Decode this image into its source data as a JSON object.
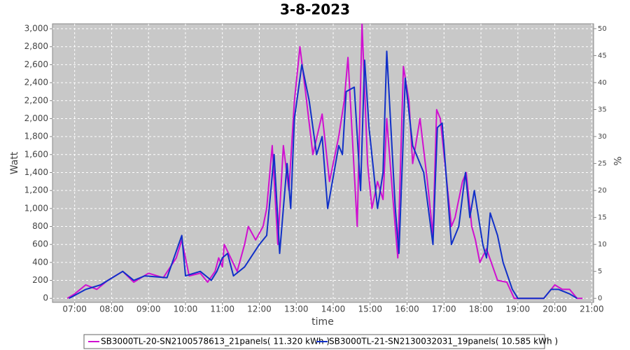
{
  "chart_data": {
    "type": "line",
    "title": "3-8-2023",
    "xlabel": "time",
    "ylabel": "Watt",
    "y2label": "%",
    "xlim": [
      6.4,
      21.05
    ],
    "xticks": [
      {
        "value": 7,
        "label": "07:00"
      },
      {
        "value": 8,
        "label": "08:00"
      },
      {
        "value": 9,
        "label": "09:00"
      },
      {
        "value": 10,
        "label": "10:00"
      },
      {
        "value": 11,
        "label": "11:00"
      },
      {
        "value": 12,
        "label": "12:00"
      },
      {
        "value": 13,
        "label": "13:00"
      },
      {
        "value": 14,
        "label": "14:00"
      },
      {
        "value": 15,
        "label": "15:00"
      },
      {
        "value": 16,
        "label": "16:00"
      },
      {
        "value": 17,
        "label": "17:00"
      },
      {
        "value": 18,
        "label": "18:00"
      },
      {
        "value": 19,
        "label": "19:00"
      },
      {
        "value": 20,
        "label": "20:00"
      },
      {
        "value": 21,
        "label": "21:00"
      }
    ],
    "ylim": [
      -45,
      3055
    ],
    "yticks": [
      0,
      200,
      400,
      600,
      800,
      {
        "value": 1000,
        "label": "1,000"
      },
      {
        "value": 1200,
        "label": "1,200"
      },
      {
        "value": 1400,
        "label": "1,400"
      },
      {
        "value": 1600,
        "label": "1,600"
      },
      {
        "value": 1800,
        "label": "1,800"
      },
      {
        "value": 2000,
        "label": "2,000"
      },
      {
        "value": 2200,
        "label": "2,200"
      },
      {
        "value": 2400,
        "label": "2,400"
      },
      {
        "value": 2600,
        "label": "2,600"
      },
      {
        "value": 2800,
        "label": "2,800"
      },
      {
        "value": 3000,
        "label": "3,000"
      }
    ],
    "y2lim": [
      -0.75,
      50.9
    ],
    "y2ticks": [
      0,
      5,
      10,
      15,
      20,
      25,
      30,
      35,
      40,
      45,
      50
    ],
    "grid": true,
    "legend": "bottom",
    "series": [
      {
        "name": "SB3000TL-20-SN2100578613_21panels( 11.320 kWh )",
        "color": "#d010d0",
        "x": [
          6.8,
          7.0,
          7.3,
          7.6,
          7.9,
          8.3,
          8.6,
          9.0,
          9.4,
          9.75,
          9.9,
          10.1,
          10.4,
          10.6,
          10.8,
          10.9,
          11.0,
          11.05,
          11.4,
          11.6,
          11.7,
          11.9,
          12.1,
          12.2,
          12.35,
          12.5,
          12.65,
          12.8,
          12.95,
          13.1,
          13.25,
          13.45,
          13.7,
          13.9,
          14.15,
          14.3,
          14.4,
          14.65,
          14.78,
          14.93,
          15.05,
          15.2,
          15.35,
          15.45,
          15.6,
          15.75,
          15.9,
          16.05,
          16.15,
          16.35,
          16.55,
          16.7,
          16.8,
          16.9,
          17.1,
          17.2,
          17.3,
          17.5,
          17.6,
          17.75,
          17.85,
          17.97,
          18.15,
          18.45,
          18.7,
          18.9,
          19.7,
          20.0,
          20.2,
          20.4,
          20.6,
          20.75
        ],
        "values": [
          0,
          50,
          150,
          100,
          200,
          300,
          180,
          280,
          230,
          450,
          650,
          250,
          280,
          180,
          300,
          450,
          350,
          600,
          300,
          600,
          800,
          650,
          800,
          1000,
          1700,
          600,
          1700,
          1200,
          2200,
          2800,
          2300,
          1600,
          2050,
          1300,
          1800,
          2200,
          2680,
          800,
          3050,
          1500,
          1000,
          1300,
          1100,
          2000,
          1200,
          450,
          2580,
          2200,
          1500,
          2000,
          1300,
          700,
          2100,
          2000,
          1200,
          800,
          900,
          1300,
          1400,
          800,
          650,
          400,
          550,
          200,
          180,
          0,
          0,
          150,
          100,
          100,
          0,
          0
        ]
      },
      {
        "name": "SB3000TL-21-SN2130032031_19panels( 10.585 kWh )",
        "color": "#1030c8",
        "x": [
          6.85,
          7.3,
          7.7,
          8.3,
          8.6,
          8.9,
          9.5,
          9.9,
          10.0,
          10.4,
          10.7,
          10.85,
          11.0,
          11.14,
          11.3,
          11.6,
          12.0,
          12.2,
          12.4,
          12.55,
          12.75,
          12.85,
          12.95,
          13.15,
          13.35,
          13.55,
          13.7,
          13.85,
          14.15,
          14.25,
          14.35,
          14.57,
          14.74,
          14.85,
          14.97,
          15.2,
          15.35,
          15.45,
          15.68,
          15.78,
          15.88,
          15.95,
          16.15,
          16.45,
          16.7,
          16.82,
          16.95,
          17.2,
          17.4,
          17.58,
          17.7,
          17.82,
          18.05,
          18.15,
          18.25,
          18.45,
          18.6,
          18.85,
          19.0,
          19.7,
          19.9,
          20.1,
          20.4,
          20.6
        ],
        "values": [
          0,
          100,
          150,
          300,
          200,
          250,
          230,
          700,
          250,
          300,
          200,
          300,
          450,
          500,
          250,
          350,
          600,
          700,
          1600,
          500,
          1500,
          1000,
          2000,
          2600,
          2200,
          1600,
          1800,
          1000,
          1700,
          1600,
          2300,
          2350,
          1200,
          2650,
          1900,
          1000,
          1400,
          2750,
          1000,
          500,
          1600,
          2450,
          1700,
          1400,
          600,
          1900,
          1950,
          600,
          800,
          1400,
          900,
          1200,
          600,
          450,
          950,
          700,
          400,
          100,
          0,
          0,
          100,
          100,
          50,
          0
        ]
      }
    ]
  }
}
